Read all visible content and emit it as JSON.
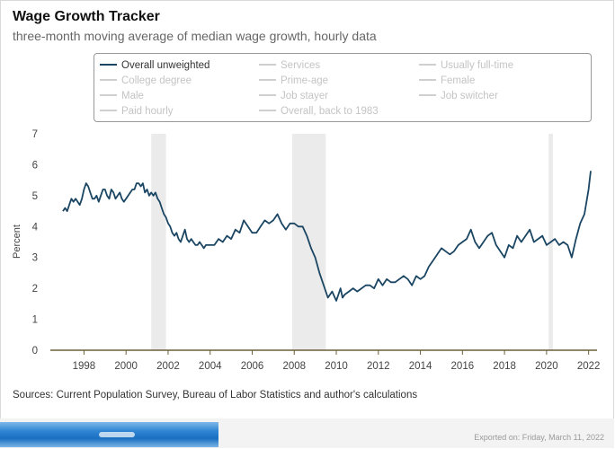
{
  "title": "Wage Growth Tracker",
  "subtitle": "three-month moving average of median wage growth, hourly data",
  "legend": [
    {
      "label": "Overall unweighted",
      "active": true
    },
    {
      "label": "Services",
      "active": false
    },
    {
      "label": "Usually full-time",
      "active": false
    },
    {
      "label": "College degree",
      "active": false
    },
    {
      "label": "Prime-age",
      "active": false
    },
    {
      "label": "Female",
      "active": false
    },
    {
      "label": "Male",
      "active": false
    },
    {
      "label": "Job stayer",
      "active": false
    },
    {
      "label": "Job switcher",
      "active": false
    },
    {
      "label": "Paid hourly",
      "active": false
    },
    {
      "label": "Overall, back to 1983",
      "active": false
    }
  ],
  "sources": "Sources: Current Population Survey, Bureau of Labor Statistics and author's calculations",
  "exported": "Exported on: Friday, March 11, 2022",
  "colors": {
    "series": "#1b4663",
    "recession": "#ebebeb",
    "axis": "#6b5f3a"
  },
  "chart_data": {
    "type": "line",
    "ylabel": "Percent",
    "xlim": [
      1996.4,
      2022.4
    ],
    "ylim": [
      0,
      7
    ],
    "yticks": [
      0,
      1,
      2,
      3,
      4,
      5,
      6,
      7
    ],
    "xticks": [
      "1998",
      "2000",
      "2002",
      "2004",
      "2006",
      "2008",
      "2010",
      "2012",
      "2014",
      "2016",
      "2018",
      "2020",
      "2022"
    ],
    "grid": false,
    "recessions": [
      [
        2001.2,
        2001.9
      ],
      [
        2007.9,
        2009.5
      ],
      [
        2020.1,
        2020.3
      ]
    ],
    "series": [
      {
        "name": "Overall unweighted",
        "x": [
          1997.0,
          1997.1,
          1997.2,
          1997.3,
          1997.4,
          1997.5,
          1997.6,
          1997.7,
          1997.8,
          1997.9,
          1998.0,
          1998.1,
          1998.2,
          1998.3,
          1998.4,
          1998.5,
          1998.6,
          1998.7,
          1998.8,
          1998.9,
          1999.0,
          1999.1,
          1999.2,
          1999.3,
          1999.4,
          1999.5,
          1999.6,
          1999.7,
          1999.8,
          1999.9,
          2000.0,
          2000.1,
          2000.2,
          2000.3,
          2000.4,
          2000.5,
          2000.6,
          2000.7,
          2000.8,
          2000.9,
          2001.0,
          2001.1,
          2001.2,
          2001.3,
          2001.4,
          2001.5,
          2001.6,
          2001.7,
          2001.8,
          2001.9,
          2002.0,
          2002.1,
          2002.2,
          2002.3,
          2002.4,
          2002.5,
          2002.6,
          2002.7,
          2002.8,
          2002.9,
          2003.0,
          2003.1,
          2003.2,
          2003.3,
          2003.4,
          2003.5,
          2003.6,
          2003.7,
          2003.8,
          2003.9,
          2004.0,
          2004.2,
          2004.4,
          2004.6,
          2004.8,
          2005.0,
          2005.2,
          2005.4,
          2005.6,
          2005.8,
          2006.0,
          2006.2,
          2006.4,
          2006.6,
          2006.8,
          2007.0,
          2007.2,
          2007.4,
          2007.6,
          2007.8,
          2008.0,
          2008.2,
          2008.4,
          2008.6,
          2008.8,
          2009.0,
          2009.2,
          2009.4,
          2009.6,
          2009.8,
          2010.0,
          2010.1,
          2010.2,
          2010.3,
          2010.4,
          2010.6,
          2010.8,
          2011.0,
          2011.2,
          2011.4,
          2011.6,
          2011.8,
          2012.0,
          2012.2,
          2012.4,
          2012.6,
          2012.8,
          2013.0,
          2013.2,
          2013.4,
          2013.6,
          2013.8,
          2014.0,
          2014.2,
          2014.4,
          2014.6,
          2014.8,
          2015.0,
          2015.2,
          2015.4,
          2015.6,
          2015.8,
          2016.0,
          2016.2,
          2016.4,
          2016.6,
          2016.8,
          2017.0,
          2017.2,
          2017.4,
          2017.6,
          2017.8,
          2018.0,
          2018.2,
          2018.4,
          2018.6,
          2018.8,
          2019.0,
          2019.2,
          2019.4,
          2019.6,
          2019.8,
          2020.0,
          2020.2,
          2020.4,
          2020.6,
          2020.8,
          2021.0,
          2021.2,
          2021.4,
          2021.6,
          2021.8,
          2022.0,
          2022.1
        ],
        "y": [
          4.5,
          4.6,
          4.5,
          4.7,
          4.9,
          4.8,
          4.9,
          4.8,
          4.7,
          4.9,
          5.2,
          5.4,
          5.3,
          5.1,
          4.9,
          4.9,
          5.0,
          4.8,
          5.0,
          5.2,
          5.2,
          5.0,
          4.9,
          5.2,
          5.1,
          4.9,
          5.0,
          5.1,
          4.9,
          4.8,
          4.9,
          5.0,
          5.1,
          5.2,
          5.2,
          5.4,
          5.4,
          5.3,
          5.4,
          5.1,
          5.2,
          5.0,
          5.1,
          5.0,
          5.1,
          4.9,
          4.8,
          4.6,
          4.4,
          4.3,
          4.1,
          4.0,
          3.8,
          3.7,
          3.8,
          3.6,
          3.5,
          3.7,
          3.9,
          3.6,
          3.5,
          3.6,
          3.5,
          3.4,
          3.4,
          3.5,
          3.4,
          3.3,
          3.4,
          3.4,
          3.4,
          3.4,
          3.6,
          3.5,
          3.7,
          3.6,
          3.9,
          3.8,
          4.2,
          4.0,
          3.8,
          3.8,
          4.0,
          4.2,
          4.1,
          4.2,
          4.4,
          4.1,
          3.9,
          4.1,
          4.1,
          4.0,
          4.0,
          3.7,
          3.3,
          3.0,
          2.5,
          2.1,
          1.7,
          1.9,
          1.6,
          1.8,
          2.0,
          1.7,
          1.8,
          1.9,
          2.0,
          1.9,
          2.0,
          2.1,
          2.1,
          2.0,
          2.3,
          2.1,
          2.3,
          2.2,
          2.2,
          2.3,
          2.4,
          2.3,
          2.1,
          2.4,
          2.3,
          2.4,
          2.7,
          2.9,
          3.1,
          3.3,
          3.2,
          3.1,
          3.2,
          3.4,
          3.5,
          3.6,
          3.9,
          3.5,
          3.3,
          3.5,
          3.7,
          3.8,
          3.4,
          3.2,
          3.0,
          3.4,
          3.3,
          3.7,
          3.5,
          3.7,
          3.9,
          3.5,
          3.6,
          3.7,
          3.4,
          3.5,
          3.6,
          3.4,
          3.5,
          3.4,
          3.0,
          3.6,
          4.1,
          4.4,
          5.2,
          5.8
        ]
      }
    ]
  }
}
